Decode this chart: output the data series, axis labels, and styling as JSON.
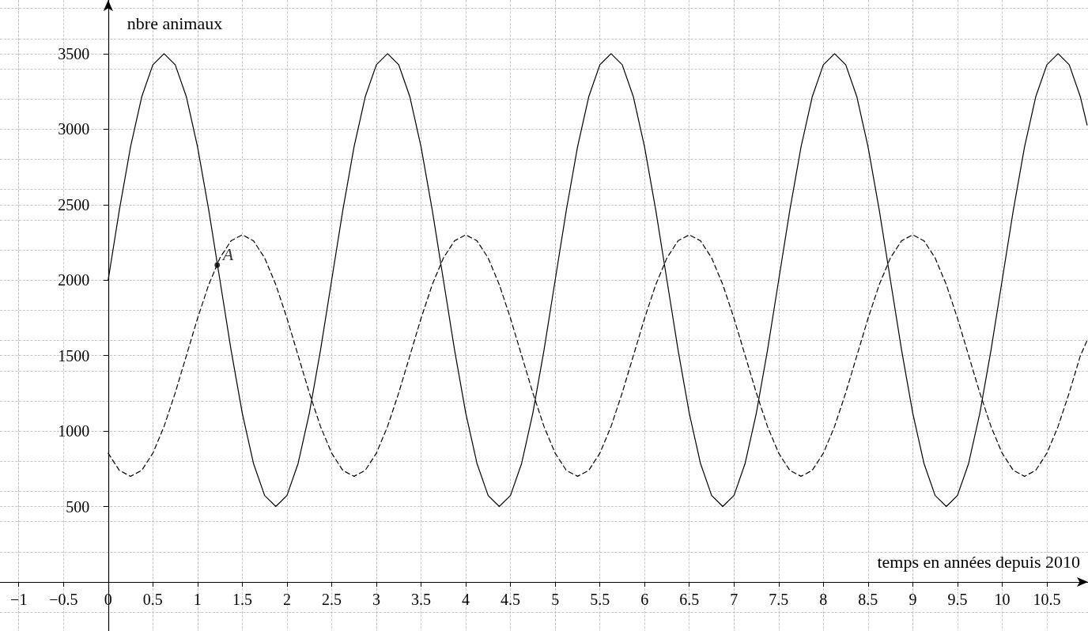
{
  "chart_data": {
    "type": "line",
    "xlabel": "temps en années depuis 2010",
    "ylabel": "nbre animaux",
    "xlim": [
      -1.21,
      10.96
    ],
    "ylim": [
      -325,
      3856
    ],
    "xticks": [
      {
        "value": -1,
        "label": "−1"
      },
      {
        "value": -0.5,
        "label": "−0.5"
      },
      0,
      0.5,
      1,
      1.5,
      2,
      2.5,
      3,
      3.5,
      4,
      4.5,
      5,
      5.5,
      6,
      6.5,
      7,
      7.5,
      8,
      8.5,
      9,
      9.5,
      10,
      10.5
    ],
    "yticks": [
      500,
      1000,
      1500,
      2000,
      2500,
      3000,
      3500
    ],
    "grid": true,
    "marker": "none",
    "annotations": [
      {
        "text": "A",
        "x": 1.22,
        "y": 2100
      }
    ],
    "series": [
      {
        "color": "#000000",
        "line_style": "solid",
        "x": [
          0,
          0.125,
          0.25,
          0.375,
          0.5,
          0.625,
          0.75,
          0.875,
          1,
          1.125,
          1.25,
          1.375,
          1.5,
          1.625,
          1.75,
          1.875,
          2,
          2.125,
          2.25,
          2.375,
          2.5,
          2.625,
          2.75,
          2.875,
          3,
          3.125,
          3.25,
          3.375,
          3.5,
          3.625,
          3.75,
          3.875,
          4,
          4.125,
          4.25,
          4.375,
          4.5,
          4.625,
          4.75,
          4.875,
          5,
          5.125,
          5.25,
          5.375,
          5.5,
          5.625,
          5.75,
          5.875,
          6,
          6.125,
          6.25,
          6.375,
          6.5,
          6.625,
          6.75,
          6.875,
          7,
          7.125,
          7.25,
          7.375,
          7.5,
          7.625,
          7.75,
          7.875,
          8,
          8.125,
          8.25,
          8.375,
          8.5,
          8.625,
          8.75,
          8.875,
          9,
          9.125,
          9.25,
          9.375,
          9.5,
          9.625,
          9.75,
          9.875,
          10,
          10.125,
          10.25,
          10.375,
          10.5,
          10.625,
          10.75,
          10.875,
          10.95
        ],
        "values": [
          2000,
          2464,
          2882,
          3214,
          3427,
          3500,
          3427,
          3214,
          2882,
          2464,
          2000,
          1536,
          1118,
          786,
          573,
          500,
          573,
          786,
          1118,
          1536,
          2000,
          2464,
          2882,
          3214,
          3427,
          3500,
          3427,
          3214,
          2882,
          2464,
          2000,
          1536,
          1118,
          786,
          573,
          500,
          573,
          786,
          1118,
          1536,
          2000,
          2464,
          2882,
          3214,
          3427,
          3500,
          3427,
          3214,
          2882,
          2464,
          2000,
          1536,
          1118,
          786,
          573,
          500,
          573,
          786,
          1118,
          1536,
          2000,
          2464,
          2882,
          3214,
          3427,
          3500,
          3427,
          3214,
          2882,
          2464,
          2000,
          1536,
          1118,
          786,
          573,
          500,
          573,
          786,
          1118,
          1536,
          2000,
          2464,
          2882,
          3214,
          3427,
          3500,
          3427,
          3214,
          3027
        ]
      },
      {
        "color": "#000000",
        "line_style": "dashed",
        "x": [
          0,
          0.125,
          0.25,
          0.375,
          0.5,
          0.625,
          0.75,
          0.875,
          1,
          1.125,
          1.25,
          1.375,
          1.5,
          1.625,
          1.75,
          1.875,
          2,
          2.125,
          2.25,
          2.375,
          2.5,
          2.625,
          2.75,
          2.875,
          3,
          3.125,
          3.25,
          3.375,
          3.5,
          3.625,
          3.75,
          3.875,
          4,
          4.125,
          4.25,
          4.375,
          4.5,
          4.625,
          4.75,
          4.875,
          5,
          5.125,
          5.25,
          5.375,
          5.5,
          5.625,
          5.75,
          5.875,
          6,
          6.125,
          6.25,
          6.375,
          6.5,
          6.625,
          6.75,
          6.875,
          7,
          7.125,
          7.25,
          7.375,
          7.5,
          7.625,
          7.75,
          7.875,
          8,
          8.125,
          8.25,
          8.375,
          8.5,
          8.625,
          8.75,
          8.875,
          9,
          9.125,
          9.25,
          9.375,
          9.5,
          9.625,
          9.75,
          9.875,
          10,
          10.125,
          10.25,
          10.375,
          10.5,
          10.625,
          10.75,
          10.875,
          10.95
        ],
        "values": [
          853,
          739,
          700,
          739,
          853,
          1030,
          1253,
          1500,
          1747,
          1970,
          2147,
          2261,
          2300,
          2261,
          2147,
          1970,
          1747,
          1500,
          1253,
          1030,
          853,
          739,
          700,
          739,
          853,
          1030,
          1253,
          1500,
          1747,
          1970,
          2147,
          2261,
          2300,
          2261,
          2147,
          1970,
          1747,
          1500,
          1253,
          1030,
          853,
          739,
          700,
          739,
          853,
          1030,
          1253,
          1500,
          1747,
          1970,
          2147,
          2261,
          2300,
          2261,
          2147,
          1970,
          1747,
          1500,
          1253,
          1030,
          853,
          739,
          700,
          739,
          853,
          1030,
          1253,
          1500,
          1747,
          1970,
          2147,
          2261,
          2300,
          2261,
          2147,
          1970,
          1747,
          1500,
          1253,
          1030,
          853,
          739,
          700,
          739,
          853,
          1030,
          1253,
          1500,
          1600
        ]
      },
      {
        "type": "scatter",
        "color": "#000000",
        "marker": "circle",
        "x": [
          1.22
        ],
        "values": [
          2100
        ]
      }
    ]
  }
}
